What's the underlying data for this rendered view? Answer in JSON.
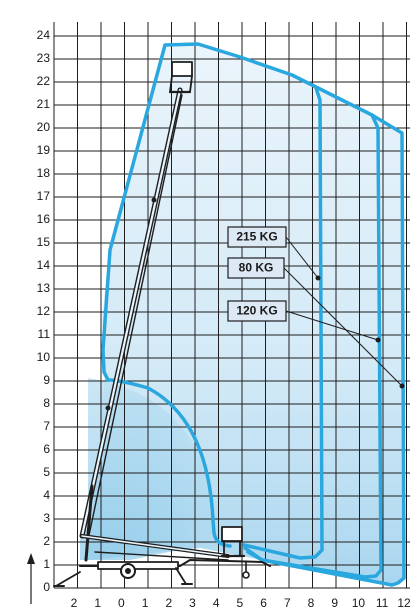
{
  "diagram": {
    "y_ticks": [
      "0",
      "1",
      "2",
      "3",
      "4",
      "5",
      "6",
      "7",
      "8",
      "9",
      "10",
      "11",
      "12",
      "13",
      "14",
      "15",
      "16",
      "17",
      "18",
      "19",
      "20",
      "21",
      "22",
      "23",
      "24"
    ],
    "x_ticks": [
      "2",
      "1",
      "0",
      "1",
      "2",
      "3",
      "4",
      "5",
      "6",
      "7",
      "8",
      "9",
      "10",
      "11",
      "12"
    ],
    "load_labels": [
      "215 KG",
      "120 KG",
      "80 KG"
    ],
    "colors": {
      "envelope": "#29a7de",
      "fill_light": "#eaf4fb",
      "fill_dark": "#a9d6ef",
      "grid": "#1e1e1e",
      "machine": "#1e1e1e",
      "label_box": "#dde8f5"
    },
    "icons": [
      "aerial-platform-icon",
      "trailer-chassis-icon",
      "up-arrow-icon"
    ]
  }
}
